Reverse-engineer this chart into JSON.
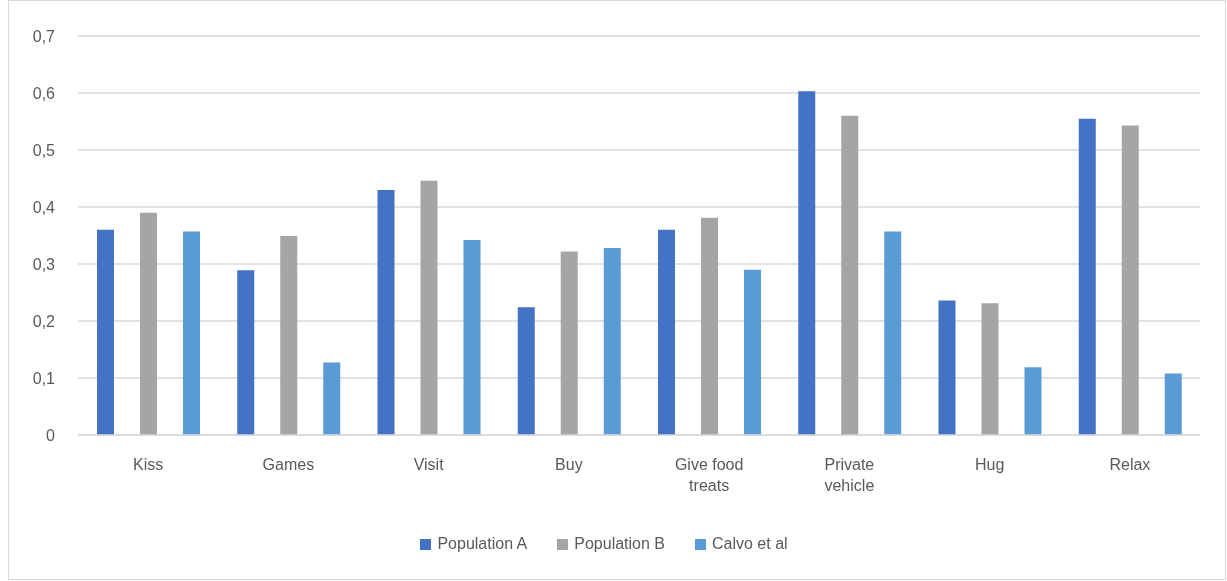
{
  "chart_data": {
    "type": "bar",
    "categories": [
      "Kiss",
      "Games",
      "Visit",
      "Buy",
      "Give food treats",
      "Private vehicle",
      "Hug",
      "Relax"
    ],
    "series": [
      {
        "name": "Population A",
        "color": "#4472c4",
        "values": [
          0.36,
          0.289,
          0.43,
          0.224,
          0.36,
          0.603,
          0.236,
          0.555
        ]
      },
      {
        "name": "Population B",
        "color": "#a5a5a5",
        "values": [
          0.39,
          0.349,
          0.446,
          0.322,
          0.381,
          0.56,
          0.231,
          0.543
        ]
      },
      {
        "name": "Calvo et al",
        "color": "#5b9bd5",
        "values": [
          0.357,
          0.127,
          0.342,
          0.328,
          0.29,
          0.357,
          0.119,
          0.108
        ]
      }
    ],
    "ylim": [
      0,
      0.7
    ],
    "yticks": [
      0,
      {
        "value": 0.1,
        "label": "0,1"
      },
      {
        "value": 0.2,
        "label": "0,2"
      },
      {
        "value": 0.3,
        "label": "0,3"
      },
      {
        "value": 0.4,
        "label": "0,4"
      },
      {
        "value": 0.5,
        "label": "0,5"
      },
      {
        "value": 0.6,
        "label": "0,6"
      },
      {
        "value": 0.7,
        "label": "0,7"
      }
    ],
    "grid": "y",
    "legend": "bottom"
  }
}
